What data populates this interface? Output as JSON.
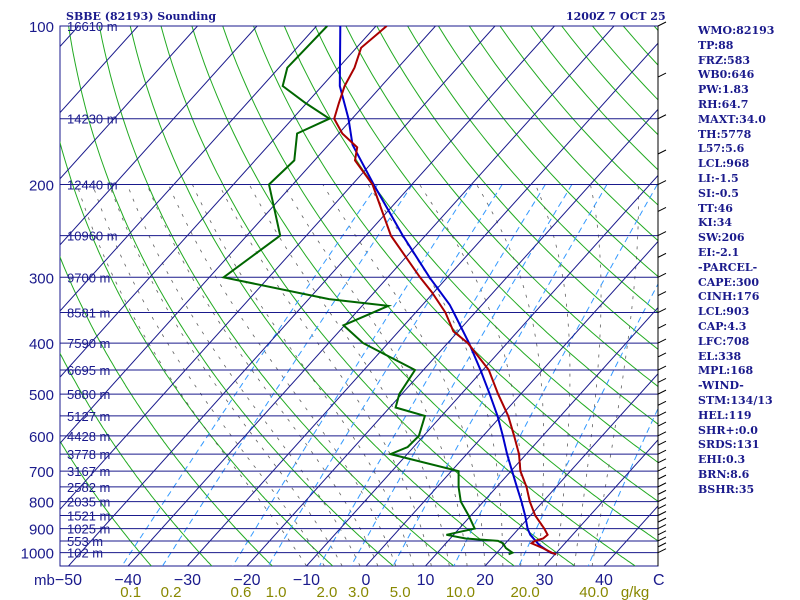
{
  "header": {
    "station": "SBBE (82193) Sounding",
    "datetime": "1200Z  7 OCT 25"
  },
  "indices": [
    "WMO:82193",
    "TP:88",
    "FRZ:583",
    "WB0:646",
    "PW:1.83",
    "RH:64.7",
    "MAXT:34.0",
    "TH:5778",
    "L57:5.6",
    "LCL:968",
    "LI:-1.5",
    "SI:-0.5",
    "TT:46",
    "KI:34",
    "SW:206",
    "EI:-2.1",
    "-PARCEL-",
    "CAPE:300",
    "CINH:176",
    "LCL:903",
    "CAP:4.3",
    "LFC:708",
    "EL:338",
    "MPL:168",
    "-WIND-",
    "STM:134/13",
    "HEL:119",
    "SHR+:0.0",
    "SRDS:131",
    "EHI:0.3",
    "BRN:8.6",
    "BSHR:35"
  ],
  "colors": {
    "isobar": "#1a1a8c",
    "isotherm": "#1a1a8c",
    "dry_adiabat": "#22aa22",
    "mixing_ratio": "#3399ff",
    "moist_adiabat": "#444444",
    "temperature": "#aa0000",
    "dewpoint": "#006600",
    "parcel": "#0000cc",
    "label": "#1a1a8c",
    "bottom_tick": "#888800"
  },
  "chart_data": {
    "type": "line",
    "title": "SBBE (82193) Sounding",
    "pressure_ticks": [
      100,
      200,
      300,
      400,
      500,
      600,
      700,
      800,
      900,
      1000
    ],
    "pressure_axis_label": "mb",
    "temperature_ticks": [
      "-50",
      "-40",
      "-30",
      "-20",
      "-10",
      "0",
      "10",
      "20",
      "30",
      "40"
    ],
    "right_axis_label": "C",
    "mixing_ratio_ticks": [
      "0.1",
      "0.2",
      "0.6",
      "1.0",
      "2.0",
      "3.0",
      "5.0",
      "10.0",
      "20.0",
      "40.0"
    ],
    "mixing_ratio_unit": "g/kg",
    "height_labels": [
      {
        "p": 100,
        "label": "16610 m"
      },
      {
        "p": 150,
        "label": "14230 m"
      },
      {
        "p": 200,
        "label": "12440 m"
      },
      {
        "p": 250,
        "label": "10960 m"
      },
      {
        "p": 300,
        "label": "9700 m"
      },
      {
        "p": 350,
        "label": "8581 m"
      },
      {
        "p": 400,
        "label": "7590 m"
      },
      {
        "p": 450,
        "label": "6695 m"
      },
      {
        "p": 500,
        "label": "5880 m"
      },
      {
        "p": 550,
        "label": "5127 m"
      },
      {
        "p": 600,
        "label": "4428 m"
      },
      {
        "p": 650,
        "label": "3778 m"
      },
      {
        "p": 700,
        "label": "3167 m"
      },
      {
        "p": 750,
        "label": "2582 m"
      },
      {
        "p": 800,
        "label": "2035 m"
      },
      {
        "p": 850,
        "label": "1521 m"
      },
      {
        "p": 900,
        "label": "1025 m"
      },
      {
        "p": 950,
        "label": "553 m"
      },
      {
        "p": 1000,
        "label": "102 m"
      }
    ],
    "xlim": [
      -50,
      50
    ],
    "ylim": [
      1000,
      100
    ],
    "temperature": [
      {
        "p": 1007,
        "t": 30.2
      },
      {
        "p": 1000,
        "t": 29.2
      },
      {
        "p": 980,
        "t": 27.0
      },
      {
        "p": 960,
        "t": 24.4
      },
      {
        "p": 950,
        "t": 24.6
      },
      {
        "p": 940,
        "t": 25.6
      },
      {
        "p": 925,
        "t": 25.8
      },
      {
        "p": 900,
        "t": 24.3
      },
      {
        "p": 850,
        "t": 20.8
      },
      {
        "p": 800,
        "t": 17.8
      },
      {
        "p": 750,
        "t": 15.0
      },
      {
        "p": 700,
        "t": 11.6
      },
      {
        "p": 650,
        "t": 8.8
      },
      {
        "p": 600,
        "t": 5.2
      },
      {
        "p": 550,
        "t": 1.2
      },
      {
        "p": 500,
        "t": -3.8
      },
      {
        "p": 450,
        "t": -9.0
      },
      {
        "p": 400,
        "t": -16.6
      },
      {
        "p": 380,
        "t": -20.8
      },
      {
        "p": 350,
        "t": -25.0
      },
      {
        "p": 320,
        "t": -30.4
      },
      {
        "p": 300,
        "t": -34.6
      },
      {
        "p": 250,
        "t": -45.8
      },
      {
        "p": 200,
        "t": -56.6
      },
      {
        "p": 180,
        "t": -63.2
      },
      {
        "p": 170,
        "t": -64.8
      },
      {
        "p": 160,
        "t": -69.4
      },
      {
        "p": 150,
        "t": -73.0
      },
      {
        "p": 140,
        "t": -74.6
      },
      {
        "p": 130,
        "t": -76.2
      },
      {
        "p": 120,
        "t": -77.3
      },
      {
        "p": 110,
        "t": -79.2
      },
      {
        "p": 100,
        "t": -78.2
      }
    ],
    "dewpoint": [
      {
        "p": 1007,
        "t": 22.2
      },
      {
        "p": 1000,
        "t": 22.6
      },
      {
        "p": 980,
        "t": 20.8
      },
      {
        "p": 960,
        "t": 19.6
      },
      {
        "p": 950,
        "t": 18.4
      },
      {
        "p": 940,
        "t": 12.6
      },
      {
        "p": 925,
        "t": 8.8
      },
      {
        "p": 900,
        "t": 12.6
      },
      {
        "p": 850,
        "t": 9.6
      },
      {
        "p": 800,
        "t": 6.2
      },
      {
        "p": 750,
        "t": 3.6
      },
      {
        "p": 700,
        "t": 1.2
      },
      {
        "p": 650,
        "t": -12.8
      },
      {
        "p": 630,
        "t": -11.0
      },
      {
        "p": 600,
        "t": -10.8
      },
      {
        "p": 550,
        "t": -12.8
      },
      {
        "p": 530,
        "t": -19.0
      },
      {
        "p": 500,
        "t": -20.4
      },
      {
        "p": 450,
        "t": -21.4
      },
      {
        "p": 400,
        "t": -34.2
      },
      {
        "p": 370,
        "t": -40.2
      },
      {
        "p": 340,
        "t": -35.6
      },
      {
        "p": 330,
        "t": -46.6
      },
      {
        "p": 300,
        "t": -67.6
      },
      {
        "p": 250,
        "t": -64.4
      },
      {
        "p": 200,
        "t": -74.0
      },
      {
        "p": 180,
        "t": -73.4
      },
      {
        "p": 160,
        "t": -77.0
      },
      {
        "p": 150,
        "t": -73.8
      },
      {
        "p": 140,
        "t": -80.2
      },
      {
        "p": 130,
        "t": -86.6
      },
      {
        "p": 120,
        "t": -88.6
      },
      {
        "p": 100,
        "t": -88.2
      }
    ],
    "parcel": [
      {
        "p": 1007,
        "t": 30.2
      },
      {
        "p": 1000,
        "t": 29.0
      },
      {
        "p": 968,
        "t": 26.0
      },
      {
        "p": 925,
        "t": 22.9
      },
      {
        "p": 900,
        "t": 21.5
      },
      {
        "p": 850,
        "t": 19.1
      },
      {
        "p": 800,
        "t": 16.4
      },
      {
        "p": 750,
        "t": 13.4
      },
      {
        "p": 700,
        "t": 10.2
      },
      {
        "p": 650,
        "t": 6.8
      },
      {
        "p": 600,
        "t": 3.3
      },
      {
        "p": 550,
        "t": -0.6
      },
      {
        "p": 500,
        "t": -5.2
      },
      {
        "p": 450,
        "t": -10.4
      },
      {
        "p": 400,
        "t": -16.4
      },
      {
        "p": 350,
        "t": -23.6
      },
      {
        "p": 338,
        "t": -25.5
      },
      {
        "p": 300,
        "t": -33.0
      },
      {
        "p": 250,
        "t": -43.8
      },
      {
        "p": 200,
        "t": -56.4
      },
      {
        "p": 168,
        "t": -66.0
      },
      {
        "p": 150,
        "t": -70.6
      },
      {
        "p": 130,
        "t": -77.0
      },
      {
        "p": 100,
        "t": -86.0
      }
    ]
  }
}
